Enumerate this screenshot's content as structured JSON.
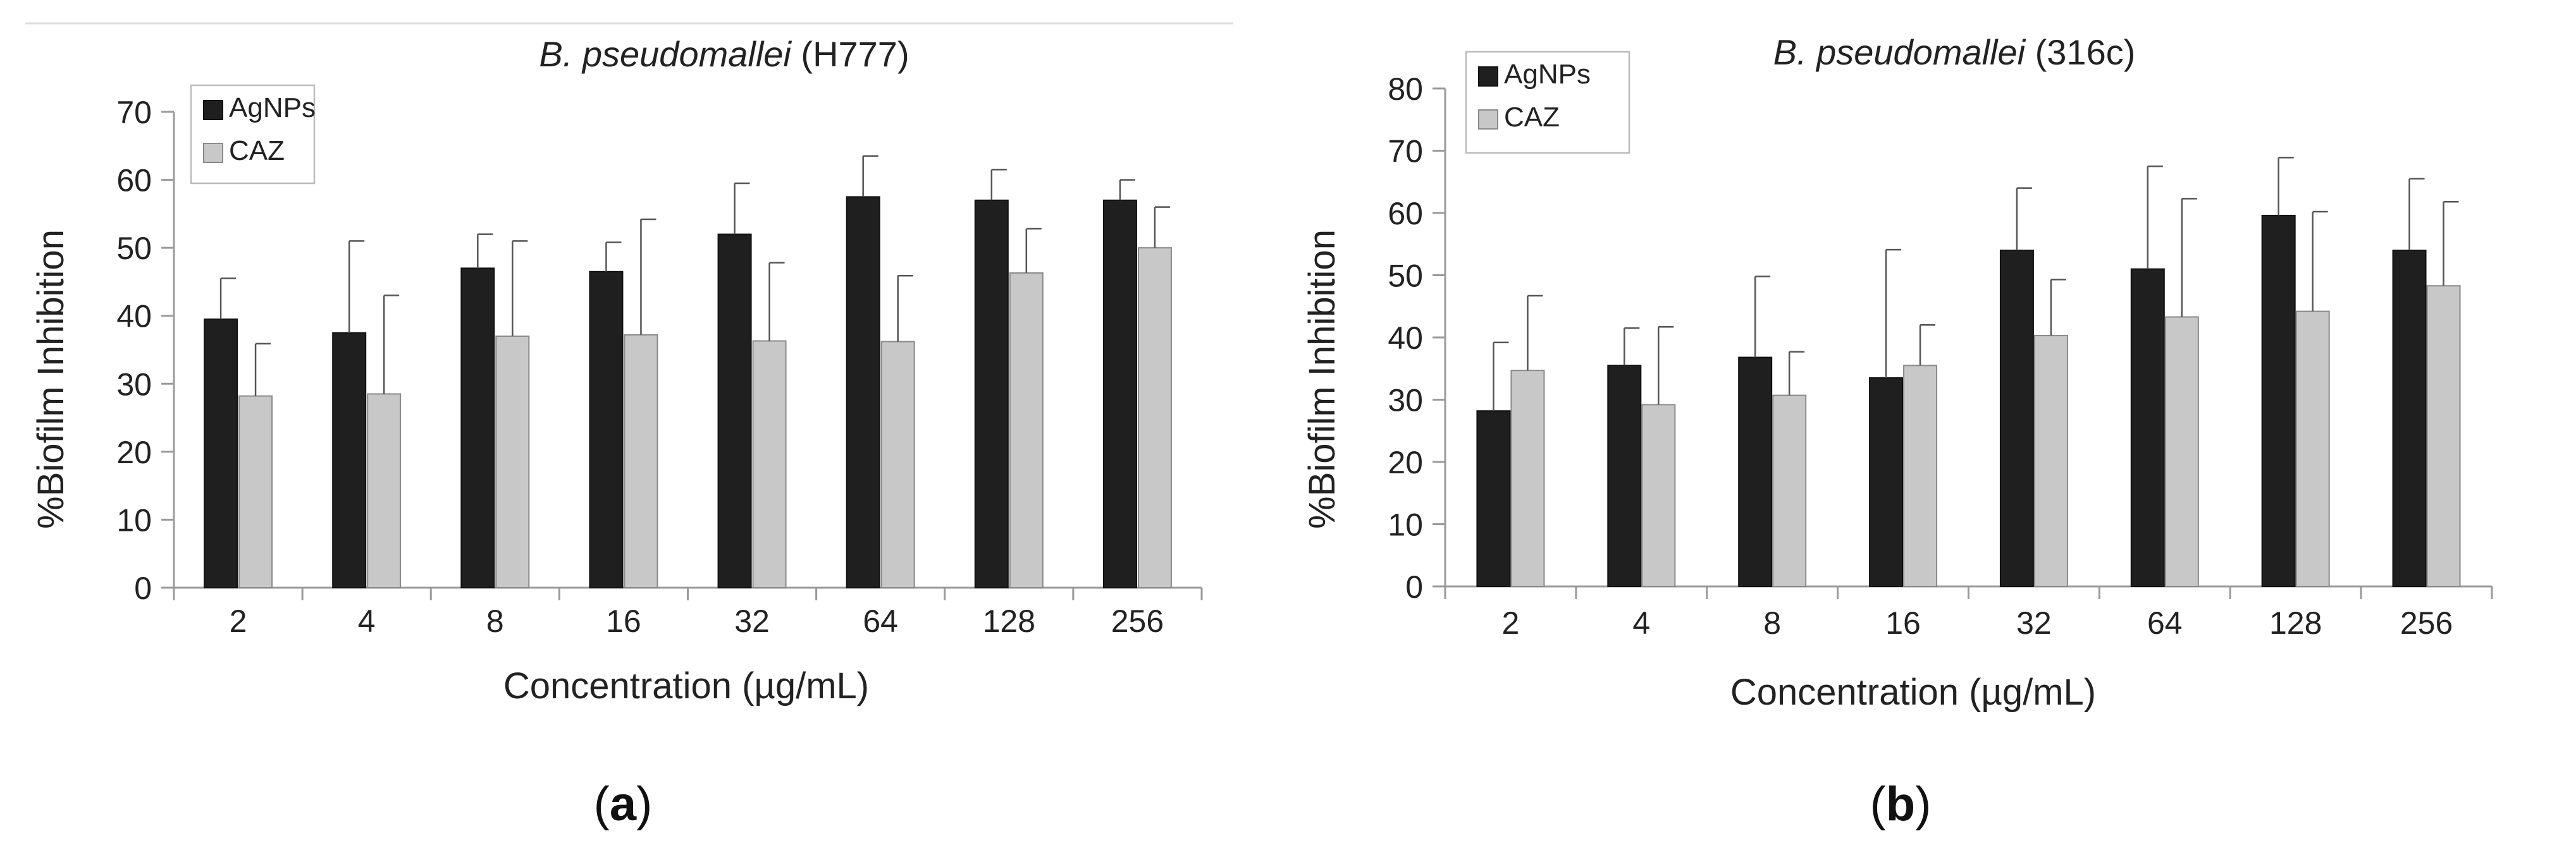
{
  "figure": {
    "panels": [
      {
        "label_open": "(",
        "label_letter": "a",
        "label_close": ")"
      },
      {
        "label_open": "(",
        "label_letter": "b",
        "label_close": ")"
      }
    ]
  },
  "chart_data": [
    {
      "type": "bar",
      "title": {
        "italic": "B. pseudomallei",
        "rest": " (H777)"
      },
      "xlabel": "Concentration (µg/mL)",
      "ylabel": "%Biofilm Inhibition",
      "categories": [
        "2",
        "4",
        "8",
        "16",
        "32",
        "64",
        "128",
        "256"
      ],
      "ylim": [
        0,
        70
      ],
      "yticks": [
        0,
        10,
        20,
        30,
        40,
        50,
        60,
        70
      ],
      "legend_position": "top-left",
      "colors": {
        "AgNPs": "#1f1f1f",
        "CAZ": "#c8c8c8"
      },
      "series": [
        {
          "name": "AgNPs",
          "values": [
            39.5,
            37.5,
            47,
            46.5,
            52,
            57.5,
            57,
            57
          ],
          "errors": [
            6,
            13.5,
            5,
            4.3,
            7.5,
            6,
            4.5,
            3
          ]
        },
        {
          "name": "CAZ",
          "values": [
            28.2,
            28.5,
            37,
            37.2,
            36.3,
            36.2,
            46.3,
            50
          ],
          "errors": [
            7.7,
            14.5,
            14,
            17,
            11.5,
            9.7,
            6.5,
            6
          ]
        }
      ]
    },
    {
      "type": "bar",
      "title": {
        "italic": "B. pseudomallei",
        "rest": " (316c)"
      },
      "xlabel": "Concentration (µg/mL)",
      "ylabel": "%Biofilm Inhibition",
      "categories": [
        "2",
        "4",
        "8",
        "16",
        "32",
        "64",
        "128",
        "256"
      ],
      "ylim": [
        0,
        80
      ],
      "yticks": [
        0,
        10,
        20,
        30,
        40,
        50,
        60,
        70,
        80
      ],
      "legend_position": "top-left",
      "colors": {
        "AgNPs": "#1f1f1f",
        "CAZ": "#c8c8c8"
      },
      "series": [
        {
          "name": "AgNPs",
          "values": [
            28.2,
            35.5,
            36.8,
            33.5,
            54,
            51,
            59.6,
            54
          ],
          "errors": [
            11,
            6,
            13,
            20.6,
            10,
            16.5,
            9.3,
            11.5
          ]
        },
        {
          "name": "CAZ",
          "values": [
            34.7,
            29.2,
            30.7,
            35.5,
            40.3,
            43.3,
            44.2,
            48.3
          ],
          "errors": [
            12,
            12.5,
            7,
            6.5,
            9,
            19,
            16,
            13.5
          ]
        }
      ]
    }
  ]
}
